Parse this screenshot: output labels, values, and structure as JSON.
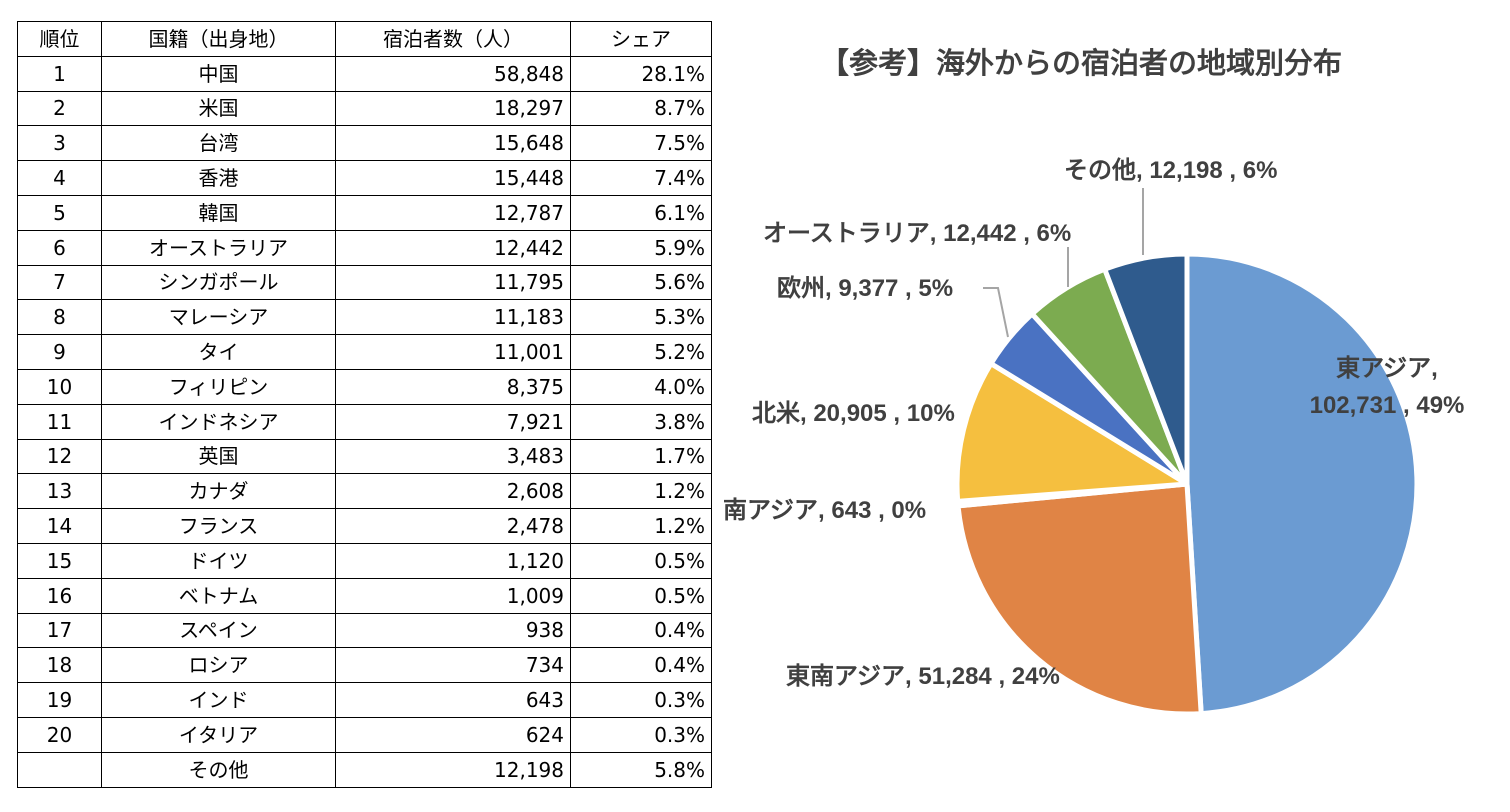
{
  "table": {
    "headers": [
      "順位",
      "国籍（出身地）",
      "宿泊者数（人）",
      "シェア"
    ],
    "rows": [
      {
        "rank": "1",
        "country": "中国",
        "guests": "58,848",
        "share": "28.1%"
      },
      {
        "rank": "2",
        "country": "米国",
        "guests": "18,297",
        "share": "8.7%"
      },
      {
        "rank": "3",
        "country": "台湾",
        "guests": "15,648",
        "share": "7.5%"
      },
      {
        "rank": "4",
        "country": "香港",
        "guests": "15,448",
        "share": "7.4%"
      },
      {
        "rank": "5",
        "country": "韓国",
        "guests": "12,787",
        "share": "6.1%"
      },
      {
        "rank": "6",
        "country": "オーストラリア",
        "guests": "12,442",
        "share": "5.9%"
      },
      {
        "rank": "7",
        "country": "シンガポール",
        "guests": "11,795",
        "share": "5.6%"
      },
      {
        "rank": "8",
        "country": "マレーシア",
        "guests": "11,183",
        "share": "5.3%"
      },
      {
        "rank": "9",
        "country": "タイ",
        "guests": "11,001",
        "share": "5.2%"
      },
      {
        "rank": "10",
        "country": "フィリピン",
        "guests": "8,375",
        "share": "4.0%"
      },
      {
        "rank": "11",
        "country": "インドネシア",
        "guests": "7,921",
        "share": "3.8%"
      },
      {
        "rank": "12",
        "country": "英国",
        "guests": "3,483",
        "share": "1.7%"
      },
      {
        "rank": "13",
        "country": "カナダ",
        "guests": "2,608",
        "share": "1.2%"
      },
      {
        "rank": "14",
        "country": "フランス",
        "guests": "2,478",
        "share": "1.2%"
      },
      {
        "rank": "15",
        "country": "ドイツ",
        "guests": "1,120",
        "share": "0.5%"
      },
      {
        "rank": "16",
        "country": "ベトナム",
        "guests": "1,009",
        "share": "0.5%"
      },
      {
        "rank": "17",
        "country": "スペイン",
        "guests": "938",
        "share": "0.4%"
      },
      {
        "rank": "18",
        "country": "ロシア",
        "guests": "734",
        "share": "0.4%"
      },
      {
        "rank": "19",
        "country": "インド",
        "guests": "643",
        "share": "0.3%"
      },
      {
        "rank": "20",
        "country": "イタリア",
        "guests": "624",
        "share": "0.3%"
      },
      {
        "rank": "",
        "country": "その他",
        "guests": "12,198",
        "share": "5.8%"
      }
    ]
  },
  "chart_data": {
    "type": "pie",
    "title": "【参考】海外からの宿泊者の地域別分布",
    "slices": [
      {
        "category": "東アジア",
        "value": 102731,
        "percent_label": "49%",
        "color": "#6b9bd2"
      },
      {
        "category": "東南アジア",
        "value": 51284,
        "percent_label": "24%",
        "color": "#e08445"
      },
      {
        "category": "南アジア",
        "value": 643,
        "percent_label": "0%",
        "color": "#a5a5a5"
      },
      {
        "category": "北米",
        "value": 20905,
        "percent_label": "10%",
        "color": "#f5bf3f"
      },
      {
        "category": "欧州",
        "value": 9377,
        "percent_label": "5%",
        "color": "#4a72c2"
      },
      {
        "category": "オーストラリア",
        "value": 12442,
        "percent_label": "6%",
        "color": "#7cab50"
      },
      {
        "category": "その他",
        "value": 12198,
        "percent_label": "6%",
        "color": "#2f5b8d"
      }
    ],
    "data_labels": [
      [
        "東アジア,",
        "102,731 , 49%"
      ],
      [
        "東南アジア, 51,284 , 24%"
      ],
      [
        "南アジア, 643 , 0%"
      ],
      [
        "北米, 20,905 , 10%"
      ],
      [
        "欧州, 9,377 , 5%"
      ],
      [
        "オーストラリア, 12,442 , 6%"
      ],
      [
        "その他, 12,198 , 6%"
      ]
    ],
    "label_color": "#404040",
    "leader_line_color": "#a5a5a5",
    "legend": "none"
  }
}
